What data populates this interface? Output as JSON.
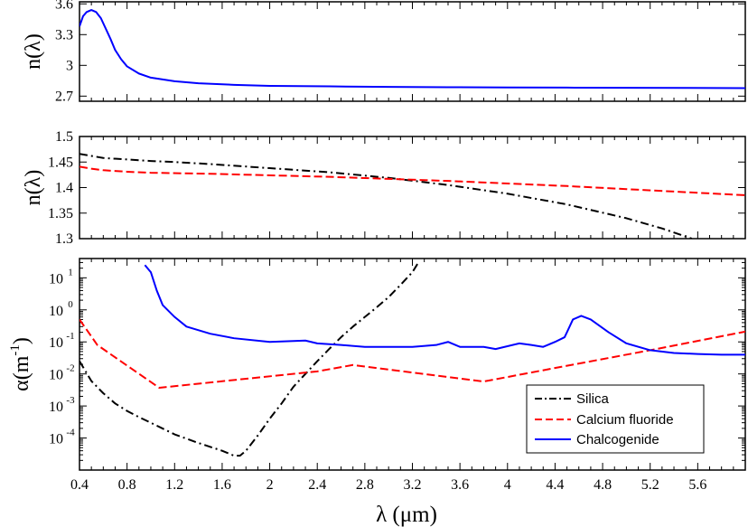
{
  "chart_data": [
    {
      "type": "line",
      "panel": "top",
      "ylabel": "n(λ)",
      "xlim": [
        0.4,
        6.0
      ],
      "ylim": [
        2.65,
        3.62
      ],
      "yticks": [
        2.7,
        3.0,
        3.3,
        3.6
      ],
      "ytick_labels": [
        "2.7",
        "3",
        "3.3",
        "3.6"
      ],
      "series": [
        {
          "name": "Chalcogenide",
          "color": "#0000ff",
          "dash": "solid",
          "x": [
            0.4,
            0.43,
            0.46,
            0.5,
            0.54,
            0.58,
            0.62,
            0.66,
            0.7,
            0.75,
            0.8,
            0.9,
            1.0,
            1.2,
            1.4,
            1.7,
            2.0,
            2.5,
            3.0,
            3.5,
            4.0,
            4.5,
            5.0,
            5.5,
            6.0
          ],
          "y": [
            3.38,
            3.48,
            3.52,
            3.54,
            3.52,
            3.46,
            3.36,
            3.26,
            3.15,
            3.06,
            2.99,
            2.92,
            2.88,
            2.845,
            2.825,
            2.81,
            2.8,
            2.795,
            2.79,
            2.787,
            2.785,
            2.783,
            2.781,
            2.78,
            2.778
          ]
        }
      ]
    },
    {
      "type": "line",
      "panel": "middle",
      "ylabel": "n(λ)",
      "xlim": [
        0.4,
        6.0
      ],
      "ylim": [
        1.3,
        1.5
      ],
      "yticks": [
        1.3,
        1.35,
        1.4,
        1.45,
        1.5
      ],
      "ytick_labels": [
        "1.3",
        "1.35",
        "1.4",
        "1.45",
        "1.5"
      ],
      "series": [
        {
          "name": "Silica",
          "color": "#000000",
          "dash": "dashdot",
          "x": [
            0.4,
            0.5,
            0.6,
            0.8,
            1.0,
            1.2,
            1.5,
            2.0,
            2.5,
            3.0,
            3.5,
            4.0,
            4.5,
            5.0,
            5.3,
            5.55
          ],
          "y": [
            1.466,
            1.462,
            1.458,
            1.455,
            1.452,
            1.45,
            1.446,
            1.438,
            1.43,
            1.419,
            1.405,
            1.388,
            1.367,
            1.34,
            1.32,
            1.3
          ]
        },
        {
          "name": "Calcium fluoride",
          "color": "#ff0000",
          "dash": "dashed",
          "x": [
            0.4,
            0.5,
            0.6,
            0.8,
            1.0,
            1.5,
            2.0,
            2.5,
            3.0,
            3.5,
            4.0,
            4.5,
            5.0,
            5.5,
            6.0
          ],
          "y": [
            1.441,
            1.437,
            1.434,
            1.431,
            1.429,
            1.427,
            1.424,
            1.421,
            1.417,
            1.413,
            1.408,
            1.403,
            1.397,
            1.391,
            1.385
          ]
        }
      ]
    },
    {
      "type": "line",
      "panel": "bottom",
      "ylabel": "α(m⁻¹)",
      "xlabel": "λ (μm)",
      "yscale": "log",
      "xlim": [
        0.4,
        6.0
      ],
      "ylim": [
        1e-05,
        40
      ],
      "yticks": [
        0.0001,
        0.001,
        0.01,
        0.1,
        1,
        10
      ],
      "ytick_labels": [
        [
          "10",
          "-4"
        ],
        [
          "10",
          "-3"
        ],
        [
          "10",
          "-2"
        ],
        [
          "10",
          "-1"
        ],
        [
          "10",
          "0"
        ],
        [
          "10",
          "1"
        ]
      ],
      "xticks": [
        0.4,
        0.8,
        1.2,
        1.6,
        2.0,
        2.4,
        2.8,
        3.2,
        3.6,
        4.0,
        4.4,
        4.8,
        5.2,
        5.6
      ],
      "xtick_labels": [
        "0.4",
        "0.8",
        "1.2",
        "1.6",
        "2",
        "2.4",
        "2.8",
        "3.2",
        "3.6",
        "4",
        "4.4",
        "4.8",
        "5.2",
        "5.6"
      ],
      "legend_position": "lower-right",
      "series": [
        {
          "name": "Silica",
          "color": "#000000",
          "dash": "dashdot",
          "x": [
            0.4,
            0.5,
            0.6,
            0.7,
            0.8,
            0.9,
            1.0,
            1.2,
            1.4,
            1.6,
            1.7,
            1.75,
            1.8,
            1.9,
            2.0,
            2.1,
            2.2,
            2.3,
            2.4,
            2.5,
            2.6,
            2.7,
            2.8,
            2.9,
            3.0,
            3.1,
            3.2,
            3.25
          ],
          "y": [
            0.025,
            0.006,
            0.0025,
            0.0012,
            0.0007,
            0.00045,
            0.0003,
            0.00013,
            7e-05,
            4e-05,
            2.8e-05,
            2.8e-05,
            4e-05,
            0.00012,
            0.0004,
            0.0012,
            0.004,
            0.01,
            0.025,
            0.06,
            0.14,
            0.3,
            0.6,
            1.2,
            2.5,
            6,
            15,
            30
          ]
        },
        {
          "name": "Calcium fluoride",
          "color": "#ff0000",
          "dash": "dashed",
          "x": [
            0.4,
            0.55,
            1.07,
            2.4,
            2.7,
            3.8,
            4.5,
            5.2,
            6.0
          ],
          "y": [
            0.5,
            0.08,
            0.0037,
            0.012,
            0.019,
            0.0058,
            0.018,
            0.055,
            0.21
          ]
        },
        {
          "name": "Chalcogenide",
          "color": "#0000ff",
          "dash": "solid",
          "x": [
            0.95,
            1.0,
            1.05,
            1.1,
            1.2,
            1.3,
            1.5,
            1.7,
            2.0,
            2.3,
            2.4,
            2.6,
            2.8,
            3.0,
            3.2,
            3.4,
            3.5,
            3.6,
            3.8,
            3.9,
            4.1,
            4.2,
            4.3,
            4.4,
            4.48,
            4.5,
            4.55,
            4.62,
            4.7,
            4.85,
            5.0,
            5.2,
            5.4,
            5.6,
            5.8,
            6.0
          ],
          "y": [
            25,
            15,
            4,
            1.4,
            0.6,
            0.3,
            0.18,
            0.13,
            0.1,
            0.11,
            0.09,
            0.08,
            0.07,
            0.07,
            0.07,
            0.08,
            0.1,
            0.07,
            0.07,
            0.06,
            0.09,
            0.08,
            0.07,
            0.1,
            0.14,
            0.2,
            0.5,
            0.65,
            0.5,
            0.2,
            0.09,
            0.055,
            0.045,
            0.042,
            0.04,
            0.04
          ]
        }
      ]
    }
  ]
}
